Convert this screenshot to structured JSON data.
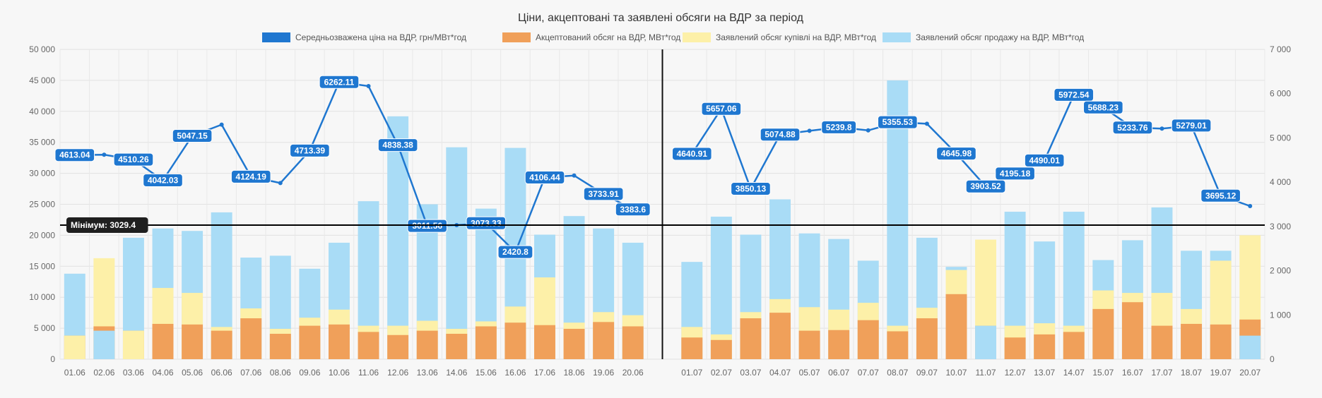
{
  "chart_data": {
    "type": "bar",
    "title": "Ціни, акцептовані та заявлені обсяги на ВДР за період",
    "categories": [
      "01.06",
      "02.06",
      "03.06",
      "04.06",
      "05.06",
      "06.06",
      "07.06",
      "08.06",
      "09.06",
      "10.06",
      "11.06",
      "12.06",
      "13.06",
      "14.06",
      "15.06",
      "16.06",
      "17.06",
      "18.06",
      "19.06",
      "20.06",
      "01.07",
      "02.07",
      "03.07",
      "04.07",
      "05.07",
      "06.07",
      "07.07",
      "08.07",
      "09.07",
      "10.07",
      "11.07",
      "12.07",
      "13.07",
      "14.07",
      "15.07",
      "16.07",
      "17.07",
      "18.07",
      "19.07",
      "20.07"
    ],
    "ylim_left": [
      0,
      50000
    ],
    "ylim_right": [
      0,
      7000
    ],
    "yticks_left": [
      "0",
      "5 000",
      "10 000",
      "15 000",
      "20 000",
      "25 000",
      "30 000",
      "35 000",
      "40 000",
      "45 000",
      "50 000"
    ],
    "yticks_right": [
      "0",
      "1 000",
      "2 000",
      "3 000",
      "4 000",
      "5 000",
      "6 000",
      "7 000"
    ],
    "legend": [
      {
        "label": "Середньозважена ціна на ВДР, грн/МВт*год",
        "color": "#1f77d0"
      },
      {
        "label": "Акцептований обсяг на ВДР, МВт*год",
        "color": "#f0a05a"
      },
      {
        "label": "Заявлений обсяг купівлі на ВДР, МВт*год",
        "color": "#fdf0a8"
      },
      {
        "label": "Заявлений обсяг продажу на ВДР, МВт*год",
        "color": "#a9dcf6"
      }
    ],
    "series": [
      {
        "name": "Середньозважена ціна на ВДР, грн/МВт*год",
        "axis": "right",
        "values": [
          4613.04,
          4620,
          4510.26,
          4042.03,
          5047.15,
          5300,
          4124.19,
          3980,
          4713.39,
          6262.11,
          6170,
          4838.38,
          3011.56,
          3030,
          3073.33,
          2420.8,
          4106.44,
          4150,
          3733.91,
          3383.6,
          4640.91,
          5657.06,
          3850.13,
          5074.88,
          5160,
          5239.8,
          5170,
          5355.53,
          5320,
          4645.98,
          3903.52,
          4195.18,
          4490.01,
          5972.54,
          5688.23,
          5233.76,
          5210,
          5279.01,
          3695.12,
          3460
        ],
        "labels": [
          "4613.04",
          null,
          "4510.26",
          "4042.03",
          "5047.15",
          null,
          "4124.19",
          null,
          "4713.39",
          "6262.11",
          null,
          "4838.38",
          "3011.56",
          null,
          "3073.33",
          "2420.8",
          "4106.44",
          null,
          "3733.91",
          "3383.6",
          "4640.91",
          "5657.06",
          "3850.13",
          "5074.88",
          null,
          "5239.8",
          null,
          "5355.53",
          null,
          "4645.98",
          "3903.52",
          "4195.18",
          "4490.01",
          "5972.54",
          "5688.23",
          "5233.76",
          null,
          "5279.01",
          "3695.12",
          null
        ]
      },
      {
        "name": "Акцептований обсяг на ВДР, МВт*год",
        "axis": "left",
        "values": [
          3800,
          5300,
          4600,
          5700,
          5600,
          4600,
          6600,
          4100,
          5400,
          5600,
          4400,
          3900,
          4600,
          4100,
          5300,
          5900,
          5500,
          4900,
          6000,
          5300,
          3500,
          3100,
          6600,
          7500,
          4600,
          4700,
          6300,
          4500,
          6600,
          10500,
          5400,
          3500,
          4000,
          4400,
          8100,
          9200,
          5400,
          5700,
          5600,
          6400
        ]
      },
      {
        "name": "Заявлений обсяг купівлі на ВДР, МВт*год",
        "axis": "left",
        "values": [
          3800,
          16300,
          4600,
          11500,
          10700,
          5200,
          8200,
          4900,
          6700,
          8000,
          5400,
          5400,
          6200,
          4900,
          6100,
          8500,
          13200,
          5900,
          7600,
          7100,
          5200,
          4000,
          7600,
          9700,
          8400,
          8000,
          9100,
          5400,
          8300,
          14400,
          19300,
          5400,
          5800,
          5400,
          11100,
          10700,
          10700,
          8100,
          15900,
          20000
        ]
      },
      {
        "name": "Заявлений обсяг продажу на ВДР, МВт*год",
        "axis": "left",
        "values": [
          13800,
          4600,
          19600,
          21100,
          20700,
          23700,
          16400,
          16700,
          14600,
          18800,
          25500,
          39200,
          25000,
          34200,
          24300,
          34100,
          20100,
          23100,
          21100,
          18800,
          15700,
          23000,
          20100,
          25800,
          20300,
          19400,
          15900,
          45000,
          19600,
          14900,
          5400,
          23800,
          19000,
          23800,
          16000,
          19200,
          24500,
          17500,
          17500,
          3800
        ]
      }
    ],
    "annotations": {
      "min_line": {
        "value": 3029.4,
        "label": "Мінімум: 3029.4",
        "axis": "right"
      },
      "divider_between": [
        "20.06",
        "01.07"
      ]
    }
  }
}
